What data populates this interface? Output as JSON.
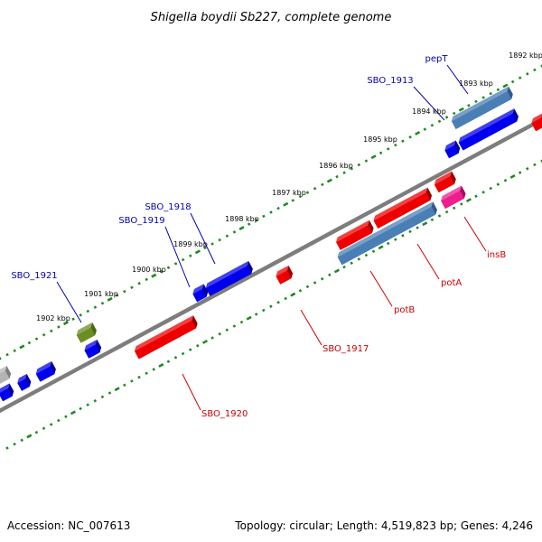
{
  "title": "Shigella boydii Sb227, complete genome",
  "footer": {
    "accession": "Accession: NC_007613",
    "summary": "Topology: circular; Length: 4,519,823 bp; Genes: 4,246"
  },
  "colors": {
    "background": "#ffffff",
    "backbone": "#808080",
    "tick_dots": "#1f8a1f",
    "gene_blue": "#0000ee",
    "gene_red": "#ee0000",
    "gene_steel": "#4a7fb5",
    "gene_pink": "#ee1e8c",
    "gene_olive": "#6b8e23",
    "gene_grey": "#b0b0b0",
    "label_forward": "#0000b0",
    "label_reverse": "#cc0000"
  },
  "ruler": {
    "unit": "kbp",
    "ticks": [
      {
        "label": "1892 kbp"
      },
      {
        "label": "1893 kbp"
      },
      {
        "label": "1894 kbp"
      },
      {
        "label": "1895 kbp"
      },
      {
        "label": "1896 kbp"
      },
      {
        "label": "1897 kbp"
      },
      {
        "label": "1898 kbp"
      },
      {
        "label": "1899 kbp"
      },
      {
        "label": "1900 kbp"
      },
      {
        "label": "1901 kbp"
      },
      {
        "label": "1902 kbp"
      }
    ]
  },
  "genes_forward": [
    {
      "name": "pepT",
      "color": "steel"
    },
    {
      "name": "SBO_1913",
      "color": "blue"
    },
    {
      "name": "SBO_1918",
      "color": "blue"
    },
    {
      "name": "SBO_1919",
      "color": "blue"
    },
    {
      "name": "SBO_1921",
      "color": "olive"
    }
  ],
  "genes_reverse": [
    {
      "name": "insB",
      "color": "pink"
    },
    {
      "name": "potA",
      "color": "red"
    },
    {
      "name": "potB",
      "color": "steel"
    },
    {
      "name": "SBO_1917",
      "color": "red"
    },
    {
      "name": "SBO_1920",
      "color": "red"
    }
  ]
}
